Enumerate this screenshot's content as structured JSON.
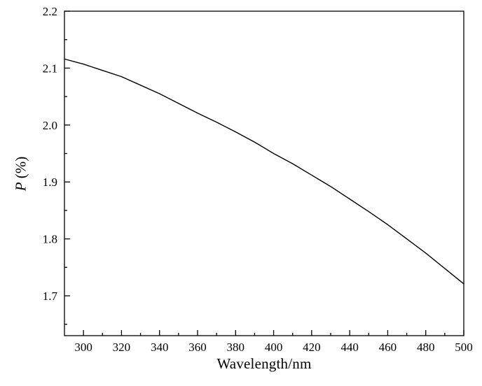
{
  "chart_data": {
    "type": "line",
    "title": "",
    "xlabel": "Wavelength/nm",
    "ylabel": "P (%)",
    "ylabel_parts": {
      "italic": "P",
      "rest": " (%)"
    },
    "xlim": [
      290,
      500
    ],
    "ylim": [
      1.63,
      2.2
    ],
    "x_ticks": [
      300,
      320,
      340,
      360,
      380,
      400,
      420,
      440,
      460,
      480,
      500
    ],
    "x_tick_labels": [
      "300",
      "320",
      "340",
      "360",
      "380",
      "400",
      "420",
      "440",
      "460",
      "480",
      "500"
    ],
    "x_minor_step": 10,
    "y_ticks": [
      1.7,
      1.8,
      1.9,
      2.0,
      2.1,
      2.2
    ],
    "y_tick_labels": [
      "1.7",
      "1.8",
      "1.9",
      "2.0",
      "2.1",
      "2.2"
    ],
    "y_minor_step": 0.05,
    "grid": false,
    "legend": false,
    "line_color": "#000000",
    "axis_color": "#000000",
    "background_color": "#ffffff",
    "series": [
      {
        "name": "P",
        "x": [
          290,
          300,
          310,
          320,
          330,
          340,
          350,
          360,
          370,
          380,
          390,
          400,
          410,
          420,
          430,
          440,
          450,
          460,
          470,
          480,
          490,
          500
        ],
        "y": [
          2.116,
          2.107,
          2.096,
          2.085,
          2.07,
          2.055,
          2.038,
          2.021,
          2.005,
          1.988,
          1.97,
          1.95,
          1.932,
          1.912,
          1.892,
          1.87,
          1.848,
          1.825,
          1.8,
          1.775,
          1.748,
          1.721
        ]
      }
    ]
  }
}
